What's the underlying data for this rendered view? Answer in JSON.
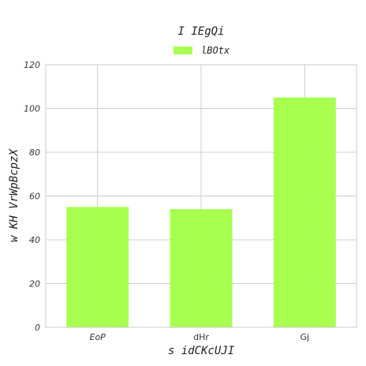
{
  "chart_data": {
    "type": "bar",
    "title": "I IEgQi",
    "xlabel": "s idCKcUJI",
    "ylabel": "w KH VrWpBcpzX",
    "categories": [
      "EoP",
      "dHr",
      "Gj"
    ],
    "category_italic": [
      true,
      false,
      false
    ],
    "series": [
      {
        "name": "lBOtx",
        "values": [
          55,
          54,
          105
        ],
        "color": "#a8ff50"
      }
    ],
    "ylim": [
      0,
      120
    ],
    "yticks": [
      0,
      20,
      40,
      60,
      80,
      100,
      120
    ],
    "grid": true,
    "legend_position": "top-center"
  }
}
